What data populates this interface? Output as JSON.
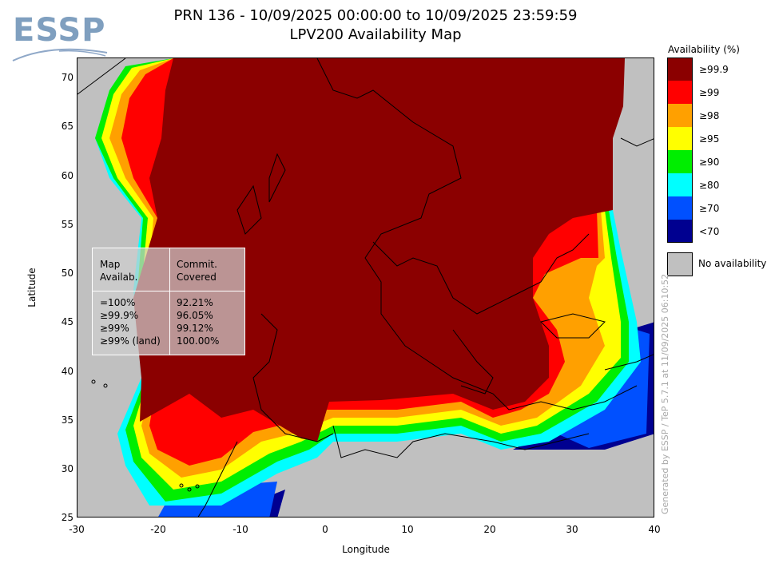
{
  "logo": {
    "text": "ESSP"
  },
  "title": {
    "line1": "PRN 136 - 10/09/2025 00:00:00 to 10/09/2025 23:59:59",
    "line2": "LPV200 Availability Map"
  },
  "axes": {
    "xlabel": "Longitude",
    "ylabel": "Latitude",
    "xticks": [
      "-30",
      "-20",
      "-10",
      "0",
      "10",
      "20",
      "30",
      "40"
    ],
    "yticks": [
      "70",
      "65",
      "60",
      "55",
      "50",
      "45",
      "40",
      "35",
      "30",
      "25"
    ]
  },
  "legend": {
    "title": "Availability (%)",
    "items": [
      {
        "label": "≥99.9",
        "color": "#8b0000"
      },
      {
        "label": "≥99",
        "color": "#ff0000"
      },
      {
        "label": "≥98",
        "color": "#ffa000"
      },
      {
        "label": "≥95",
        "color": "#ffff00"
      },
      {
        "label": "≥90",
        "color": "#00ee00"
      },
      {
        "label": "≥80",
        "color": "#00ffff"
      },
      {
        "label": "≥70",
        "color": "#0050ff"
      },
      {
        "label": "<70",
        "color": "#000090"
      }
    ],
    "no_availability": {
      "label": "No availability",
      "color": "#c0c0c0"
    }
  },
  "stats": {
    "header_left": "Map\nAvailab.",
    "header_right": "Commit.\nCovered",
    "rows_left": "=100%\n≥99.9%\n≥99%\n≥99% (land)",
    "rows_right": "92.21%\n96.05%\n99.12%\n100.00%"
  },
  "watermark": "Generated by ESSP / TeP 5.7.1 at 11/09/2025 06:10:52"
}
